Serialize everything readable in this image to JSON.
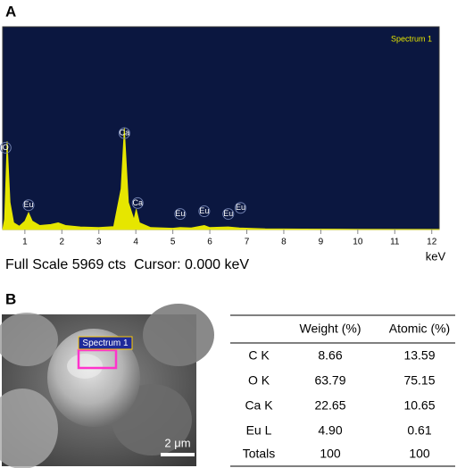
{
  "chart_data": {
    "type": "area",
    "panel_label": "A",
    "legend": "top-right",
    "background": "#0b1740",
    "x": [
      0.4,
      0.45,
      0.52,
      0.6,
      0.7,
      0.85,
      1.0,
      1.1,
      1.2,
      1.4,
      1.7,
      1.9,
      2.1,
      2.5,
      3.0,
      3.4,
      3.6,
      3.69,
      3.8,
      3.95,
      4.01,
      4.1,
      4.4,
      5.0,
      5.2,
      5.5,
      5.85,
      6.0,
      6.5,
      6.8,
      7.5,
      8.5,
      10.0,
      12.2
    ],
    "series": [
      {
        "name": "Spectrum 1",
        "color": "#e6e600",
        "values": [
          0,
          300,
          2600,
          800,
          200,
          100,
          250,
          500,
          250,
          120,
          150,
          200,
          120,
          80,
          60,
          90,
          1200,
          3000,
          800,
          300,
          600,
          200,
          60,
          40,
          60,
          50,
          120,
          60,
          80,
          50,
          20,
          15,
          10,
          5
        ]
      }
    ],
    "annotations": [
      {
        "text": "O",
        "x": 0.48,
        "y": 2250
      },
      {
        "text": "Eu",
        "x": 1.1,
        "y": 560
      },
      {
        "text": "Ca",
        "x": 3.69,
        "y": 2680
      },
      {
        "text": "Ca",
        "x": 4.05,
        "y": 620
      },
      {
        "text": "Eu",
        "x": 5.2,
        "y": 300
      },
      {
        "text": "Eu",
        "x": 5.85,
        "y": 380
      },
      {
        "text": "Eu",
        "x": 6.5,
        "y": 300
      },
      {
        "text": "Eu",
        "x": 6.83,
        "y": 480
      }
    ],
    "xlim": [
      0.4,
      12.2
    ],
    "ylim": [
      0,
      5969
    ],
    "xticks": [
      1,
      2,
      3,
      4,
      5,
      6,
      7,
      8,
      9,
      10,
      11,
      12
    ],
    "xlabel": "keV",
    "status": "Full Scale 5969 cts  Cursor: 0.000 keV"
  },
  "image": {
    "panel_label": "B",
    "spectrum_label": "Spectrum 1",
    "scale_bar": "2 μm"
  },
  "table": {
    "columns": [
      "",
      "Weight (%)",
      "Atomic (%)"
    ],
    "rows": [
      [
        "C K",
        "8.66",
        "13.59"
      ],
      [
        "O K",
        "63.79",
        "75.15"
      ],
      [
        "Ca K",
        "22.65",
        "10.65"
      ],
      [
        "Eu L",
        "4.90",
        "0.61"
      ],
      [
        "Totals",
        "100",
        "100"
      ]
    ]
  }
}
